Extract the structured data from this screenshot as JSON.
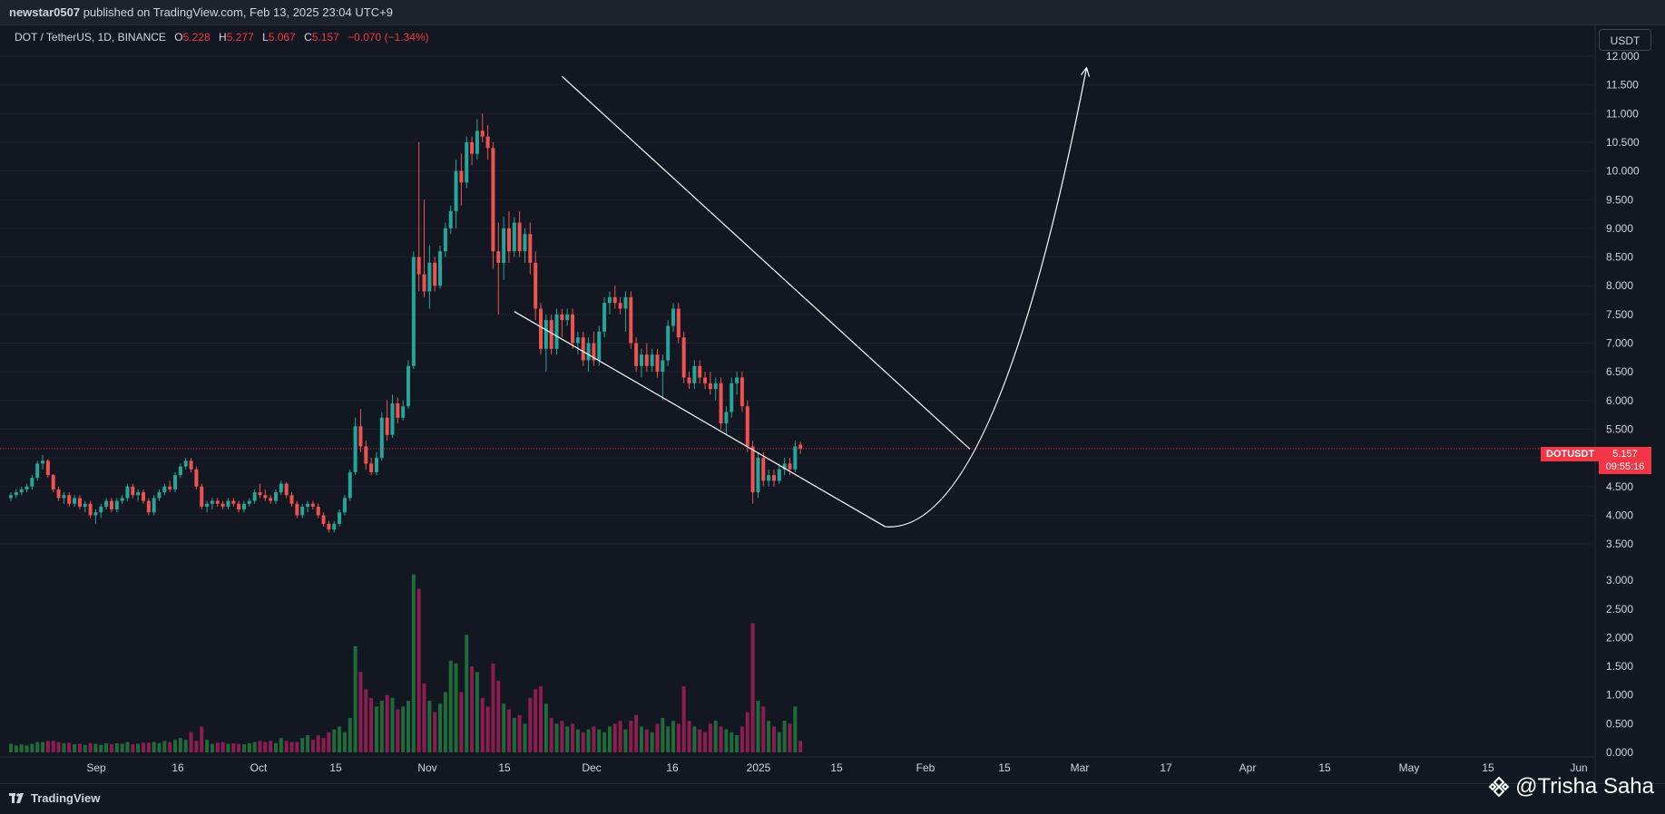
{
  "header": {
    "author": "newstar0507",
    "published_text": "published on TradingView.com, Feb 13, 2025 23:04 UTC+9"
  },
  "legend": {
    "symbol": "DOT / TetherUS, 1D, BINANCE",
    "open_label": "O",
    "open": "5.228",
    "high_label": "H",
    "high": "5.277",
    "low_label": "L",
    "low": "5.067",
    "close_label": "C",
    "close": "5.157",
    "change": "−0.070 (−1.34%)"
  },
  "price_axis": {
    "currency": "USDT",
    "labels": [
      "12.000",
      "11.500",
      "11.000",
      "10.500",
      "10.000",
      "9.500",
      "9.000",
      "8.500",
      "8.000",
      "7.500",
      "7.000",
      "6.500",
      "6.000",
      "5.500",
      "5.000",
      "4.500",
      "4.000",
      "3.500"
    ],
    "ticker_tag": "DOTUSDT",
    "last_price": "5.157",
    "countdown": "09:55:16"
  },
  "volume_axis": {
    "labels": [
      "3.000",
      "2.500",
      "2.000",
      "1.500",
      "1.000",
      "0.500",
      "0.000"
    ]
  },
  "time_axis": {
    "labels": [
      "Sep",
      "16",
      "Oct",
      "15",
      "Nov",
      "15",
      "Dec",
      "16",
      "2025",
      "15",
      "Feb",
      "15",
      "Mar",
      "17",
      "Apr",
      "15",
      "May",
      "15",
      "Jun"
    ]
  },
  "footer": {
    "brand": "TradingView",
    "watermark": "@Trisha Saha"
  },
  "colors": {
    "up": "#26a69a",
    "down": "#ef5350",
    "vol_up": "#1f6b39",
    "vol_down": "#8c1e4f",
    "background": "#131722",
    "drawing": "#ffffff"
  },
  "chart_data": {
    "type": "candlestick",
    "symbol": "DOTUSDT",
    "interval": "1D",
    "x_start": "2024-08-22",
    "price_range": [
      3.5,
      12.0
    ],
    "volume_range": [
      0,
      3.0
    ],
    "ohlc": [
      [
        4.3,
        4.4,
        4.25,
        4.35
      ],
      [
        4.35,
        4.45,
        4.3,
        4.4
      ],
      [
        4.4,
        4.5,
        4.35,
        4.45
      ],
      [
        4.45,
        4.55,
        4.4,
        4.5
      ],
      [
        4.5,
        4.7,
        4.45,
        4.65
      ],
      [
        4.65,
        4.95,
        4.6,
        4.9
      ],
      [
        4.9,
        5.05,
        4.8,
        4.95
      ],
      [
        4.95,
        4.98,
        4.65,
        4.7
      ],
      [
        4.7,
        4.72,
        4.4,
        4.45
      ],
      [
        4.45,
        4.5,
        4.25,
        4.3
      ],
      [
        4.3,
        4.4,
        4.2,
        4.35
      ],
      [
        4.35,
        4.4,
        4.15,
        4.2
      ],
      [
        4.2,
        4.35,
        4.15,
        4.3
      ],
      [
        4.3,
        4.35,
        4.1,
        4.15
      ],
      [
        4.15,
        4.25,
        4.05,
        4.2
      ],
      [
        4.2,
        4.25,
        3.95,
        4.0
      ],
      [
        4.0,
        4.1,
        3.85,
        4.05
      ],
      [
        4.05,
        4.2,
        3.95,
        4.15
      ],
      [
        4.15,
        4.3,
        4.1,
        4.25
      ],
      [
        4.25,
        4.3,
        4.05,
        4.1
      ],
      [
        4.1,
        4.3,
        4.05,
        4.25
      ],
      [
        4.25,
        4.35,
        4.2,
        4.3
      ],
      [
        4.3,
        4.55,
        4.25,
        4.5
      ],
      [
        4.5,
        4.55,
        4.3,
        4.35
      ],
      [
        4.35,
        4.45,
        4.25,
        4.4
      ],
      [
        4.4,
        4.45,
        4.2,
        4.25
      ],
      [
        4.25,
        4.3,
        4.0,
        4.05
      ],
      [
        4.05,
        4.35,
        4.0,
        4.3
      ],
      [
        4.3,
        4.45,
        4.25,
        4.4
      ],
      [
        4.4,
        4.55,
        4.35,
        4.5
      ],
      [
        4.5,
        4.6,
        4.4,
        4.45
      ],
      [
        4.45,
        4.75,
        4.4,
        4.7
      ],
      [
        4.7,
        4.9,
        4.65,
        4.85
      ],
      [
        4.85,
        5.0,
        4.8,
        4.95
      ],
      [
        4.95,
        5.0,
        4.75,
        4.8
      ],
      [
        4.8,
        4.85,
        4.45,
        4.5
      ],
      [
        4.5,
        4.55,
        4.1,
        4.15
      ],
      [
        4.15,
        4.25,
        4.05,
        4.2
      ],
      [
        4.2,
        4.3,
        4.1,
        4.25
      ],
      [
        4.25,
        4.3,
        4.15,
        4.2
      ],
      [
        4.2,
        4.25,
        4.1,
        4.15
      ],
      [
        4.15,
        4.3,
        4.1,
        4.25
      ],
      [
        4.25,
        4.3,
        4.15,
        4.2
      ],
      [
        4.2,
        4.25,
        4.05,
        4.1
      ],
      [
        4.1,
        4.25,
        4.05,
        4.2
      ],
      [
        4.2,
        4.3,
        4.15,
        4.25
      ],
      [
        4.25,
        4.45,
        4.2,
        4.4
      ],
      [
        4.4,
        4.55,
        4.3,
        4.35
      ],
      [
        4.35,
        4.45,
        4.25,
        4.3
      ],
      [
        4.3,
        4.35,
        4.2,
        4.25
      ],
      [
        4.25,
        4.45,
        4.2,
        4.4
      ],
      [
        4.4,
        4.6,
        4.35,
        4.55
      ],
      [
        4.55,
        4.58,
        4.3,
        4.35
      ],
      [
        4.35,
        4.4,
        4.15,
        4.2
      ],
      [
        4.2,
        4.25,
        3.95,
        4.0
      ],
      [
        4.0,
        4.2,
        3.95,
        4.15
      ],
      [
        4.15,
        4.25,
        4.05,
        4.2
      ],
      [
        4.2,
        4.25,
        4.1,
        4.15
      ],
      [
        4.15,
        4.2,
        3.95,
        4.0
      ],
      [
        4.0,
        4.05,
        3.8,
        3.85
      ],
      [
        3.85,
        3.9,
        3.7,
        3.75
      ],
      [
        3.75,
        3.9,
        3.7,
        3.85
      ],
      [
        3.85,
        4.1,
        3.8,
        4.05
      ],
      [
        4.05,
        4.35,
        4.0,
        4.3
      ],
      [
        4.3,
        4.8,
        4.25,
        4.75
      ],
      [
        4.75,
        5.7,
        4.7,
        5.55
      ],
      [
        5.55,
        5.85,
        5.1,
        5.2
      ],
      [
        5.2,
        5.3,
        4.8,
        4.9
      ],
      [
        4.9,
        5.0,
        4.7,
        4.75
      ],
      [
        4.75,
        5.1,
        4.7,
        5.0
      ],
      [
        5.0,
        5.8,
        4.95,
        5.7
      ],
      [
        5.7,
        6.0,
        5.3,
        5.4
      ],
      [
        5.4,
        6.1,
        5.35,
        5.95
      ],
      [
        5.95,
        6.05,
        5.6,
        5.7
      ],
      [
        5.7,
        6.0,
        5.65,
        5.9
      ],
      [
        5.9,
        6.7,
        5.85,
        6.6
      ],
      [
        6.6,
        8.6,
        6.55,
        8.5
      ],
      [
        8.5,
        10.5,
        7.9,
        8.2
      ],
      [
        8.2,
        9.5,
        7.8,
        7.9
      ],
      [
        7.9,
        8.7,
        7.6,
        8.4
      ],
      [
        8.4,
        8.5,
        7.9,
        8.0
      ],
      [
        8.0,
        8.7,
        7.95,
        8.6
      ],
      [
        8.6,
        9.1,
        8.5,
        9.0
      ],
      [
        9.0,
        9.4,
        8.9,
        9.3
      ],
      [
        9.3,
        10.2,
        9.0,
        10.0
      ],
      [
        10.0,
        10.3,
        9.4,
        9.8
      ],
      [
        9.8,
        10.6,
        9.7,
        10.5
      ],
      [
        10.5,
        10.6,
        10.1,
        10.3
      ],
      [
        10.3,
        10.9,
        10.2,
        10.7
      ],
      [
        10.7,
        11.0,
        10.5,
        10.6
      ],
      [
        10.6,
        10.8,
        10.2,
        10.4
      ],
      [
        10.4,
        10.5,
        8.3,
        8.6
      ],
      [
        8.6,
        9.1,
        7.5,
        8.4
      ],
      [
        8.4,
        9.2,
        8.1,
        9.0
      ],
      [
        9.0,
        9.3,
        8.4,
        8.6
      ],
      [
        8.6,
        9.2,
        8.5,
        9.1
      ],
      [
        9.1,
        9.3,
        8.5,
        8.6
      ],
      [
        8.6,
        9.0,
        8.4,
        8.9
      ],
      [
        8.9,
        9.1,
        8.2,
        8.4
      ],
      [
        8.4,
        8.6,
        7.4,
        7.6
      ],
      [
        7.6,
        7.7,
        6.8,
        6.9
      ],
      [
        6.9,
        7.5,
        6.5,
        7.4
      ],
      [
        7.4,
        7.5,
        6.8,
        6.9
      ],
      [
        6.9,
        7.6,
        6.8,
        7.5
      ],
      [
        7.5,
        7.6,
        7.1,
        7.4
      ],
      [
        7.4,
        7.6,
        7.3,
        7.5
      ],
      [
        7.5,
        7.6,
        6.9,
        7.0
      ],
      [
        7.0,
        7.2,
        6.8,
        7.1
      ],
      [
        7.1,
        7.2,
        6.6,
        6.7
      ],
      [
        6.7,
        7.1,
        6.5,
        7.0
      ],
      [
        7.0,
        7.2,
        6.6,
        6.7
      ],
      [
        6.7,
        7.3,
        6.6,
        7.2
      ],
      [
        7.2,
        7.8,
        7.1,
        7.7
      ],
      [
        7.7,
        7.9,
        7.5,
        7.8
      ],
      [
        7.8,
        8.0,
        7.6,
        7.7
      ],
      [
        7.7,
        7.8,
        7.5,
        7.6
      ],
      [
        7.6,
        7.9,
        7.2,
        7.8
      ],
      [
        7.8,
        7.9,
        6.9,
        7.0
      ],
      [
        7.0,
        7.1,
        6.5,
        6.6
      ],
      [
        6.6,
        6.9,
        6.4,
        6.8
      ],
      [
        6.8,
        7.0,
        6.5,
        6.6
      ],
      [
        6.6,
        6.9,
        6.5,
        6.8
      ],
      [
        6.8,
        6.9,
        6.4,
        6.5
      ],
      [
        6.5,
        6.8,
        6.0,
        6.7
      ],
      [
        6.7,
        7.4,
        6.6,
        7.3
      ],
      [
        7.3,
        7.7,
        7.2,
        7.6
      ],
      [
        7.6,
        7.7,
        7.0,
        7.1
      ],
      [
        7.1,
        7.2,
        6.3,
        6.4
      ],
      [
        6.4,
        6.5,
        6.2,
        6.3
      ],
      [
        6.3,
        6.7,
        6.2,
        6.6
      ],
      [
        6.6,
        6.7,
        6.3,
        6.4
      ],
      [
        6.4,
        6.5,
        6.2,
        6.3
      ],
      [
        6.3,
        6.5,
        6.1,
        6.2
      ],
      [
        6.2,
        6.4,
        6.0,
        6.3
      ],
      [
        6.3,
        6.4,
        5.5,
        5.6
      ],
      [
        5.6,
        5.9,
        5.4,
        5.8
      ],
      [
        5.8,
        6.4,
        5.7,
        6.3
      ],
      [
        6.3,
        6.5,
        6.1,
        6.4
      ],
      [
        6.4,
        6.5,
        5.8,
        5.9
      ],
      [
        5.9,
        6.0,
        5.1,
        5.2
      ],
      [
        5.2,
        5.3,
        4.2,
        4.4
      ],
      [
        4.4,
        5.1,
        4.3,
        5.0
      ],
      [
        5.0,
        5.1,
        4.5,
        4.6
      ],
      [
        4.6,
        4.8,
        4.5,
        4.7
      ],
      [
        4.7,
        4.8,
        4.5,
        4.6
      ],
      [
        4.6,
        4.9,
        4.55,
        4.8
      ],
      [
        4.8,
        5.0,
        4.7,
        4.9
      ],
      [
        4.9,
        5.0,
        4.7,
        4.8
      ],
      [
        4.8,
        5.3,
        4.75,
        5.2
      ],
      [
        5.23,
        5.28,
        5.07,
        5.16
      ]
    ],
    "volume": [
      0.15,
      0.12,
      0.14,
      0.12,
      0.15,
      0.18,
      0.18,
      0.2,
      0.2,
      0.18,
      0.16,
      0.17,
      0.14,
      0.15,
      0.13,
      0.16,
      0.15,
      0.13,
      0.16,
      0.14,
      0.16,
      0.15,
      0.18,
      0.14,
      0.15,
      0.17,
      0.17,
      0.18,
      0.16,
      0.2,
      0.18,
      0.22,
      0.25,
      0.22,
      0.35,
      0.2,
      0.45,
      0.22,
      0.15,
      0.17,
      0.18,
      0.15,
      0.16,
      0.15,
      0.14,
      0.16,
      0.18,
      0.2,
      0.18,
      0.2,
      0.16,
      0.25,
      0.2,
      0.18,
      0.18,
      0.25,
      0.3,
      0.22,
      0.3,
      0.25,
      0.35,
      0.4,
      0.45,
      0.35,
      0.6,
      1.85,
      1.4,
      1.1,
      0.95,
      0.8,
      0.9,
      1.0,
      0.95,
      0.75,
      0.8,
      0.9,
      3.1,
      2.85,
      1.2,
      0.9,
      0.7,
      0.85,
      1.05,
      1.6,
      1.55,
      1.05,
      2.05,
      1.5,
      1.4,
      0.95,
      0.8,
      1.55,
      1.25,
      0.85,
      0.75,
      0.6,
      0.65,
      0.5,
      0.95,
      1.1,
      1.15,
      0.85,
      0.6,
      0.5,
      0.55,
      0.45,
      0.5,
      0.4,
      0.35,
      0.4,
      0.45,
      0.4,
      0.35,
      0.45,
      0.5,
      0.55,
      0.4,
      0.55,
      0.65,
      0.45,
      0.4,
      0.35,
      0.5,
      0.6,
      0.45,
      0.55,
      0.5,
      1.15,
      0.55,
      0.45,
      0.4,
      0.35,
      0.5,
      0.55,
      0.45,
      0.4,
      0.35,
      0.3,
      0.45,
      0.7,
      2.25,
      0.9,
      0.8,
      0.55,
      0.45,
      0.35,
      0.55,
      0.5,
      0.8,
      0.2
    ],
    "drawings": [
      {
        "kind": "line",
        "from": [
          "2024-11-25",
          7.55
        ],
        "to": [
          "2025-02-03",
          3.8
        ]
      },
      {
        "kind": "line",
        "from": [
          "2024-12-04",
          11.65
        ],
        "to": [
          "2025-02-19",
          5.15
        ]
      },
      {
        "kind": "curve_arrow",
        "from": [
          "2025-02-03",
          3.8
        ],
        "to": [
          "2025-03-13",
          11.8
        ]
      }
    ]
  }
}
